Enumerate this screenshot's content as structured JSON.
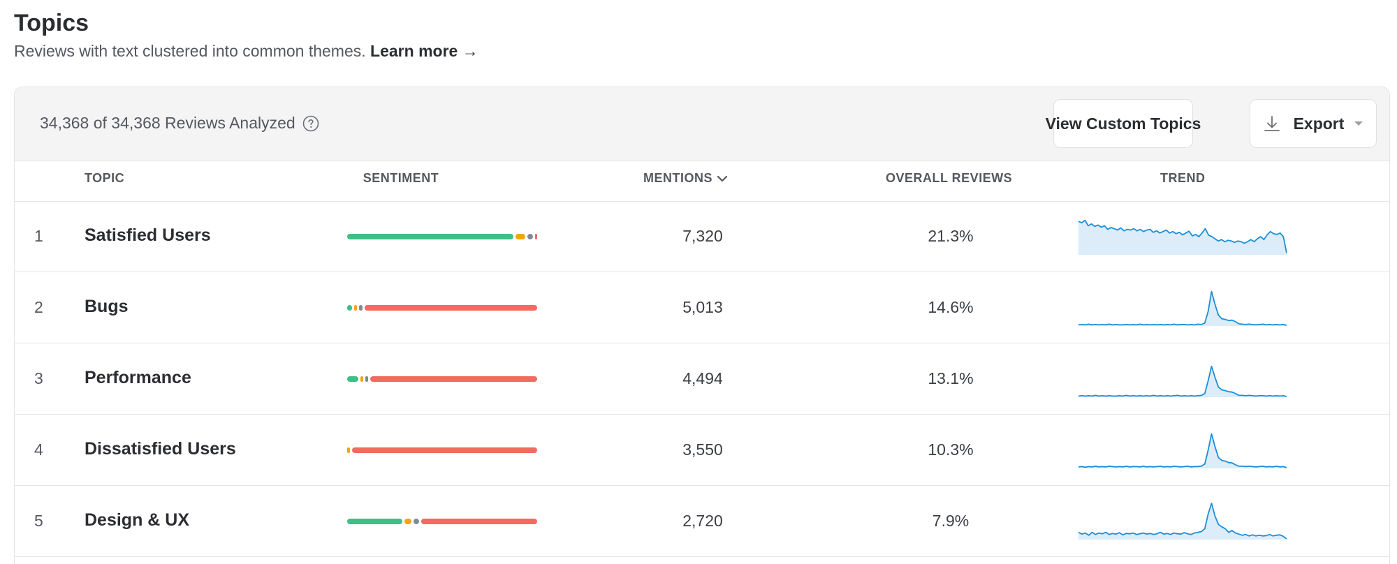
{
  "header": {
    "title": "Topics",
    "subtitle": "Reviews with text clustered into common themes.",
    "learn_more": "Learn more →"
  },
  "toolbar": {
    "analyzed": "34,368 of 34,368 Reviews Analyzed",
    "custom_topics_label": "View Custom Topics",
    "export_label": "Export"
  },
  "colors": {
    "positive": "#3dbf87",
    "mixed": "#f6a313",
    "neutral": "#7f8a96",
    "negative": "#f26a61",
    "trend_line": "#1a8fd8",
    "trend_fill": "#dcecf8"
  },
  "table": {
    "columns": {
      "topic": "TOPIC",
      "sentiment": "SENTIMENT",
      "mentions": "MENTIONS",
      "overall": "OVERALL REVIEWS",
      "trend": "TREND"
    },
    "rows": [
      {
        "rank": "1",
        "topic": "Satisfied Users",
        "mentions": "7,320",
        "overall": "21.3%",
        "sentiment": {
          "positive": 0.885,
          "mixed": 0.065,
          "neutral": 0.04,
          "negative": 0.01
        },
        "trend": [
          0.92,
          0.88,
          0.95,
          0.8,
          0.85,
          0.78,
          0.82,
          0.76,
          0.8,
          0.7,
          0.75,
          0.72,
          0.68,
          0.74,
          0.66,
          0.7,
          0.68,
          0.72,
          0.66,
          0.7,
          0.64,
          0.68,
          0.7,
          0.62,
          0.66,
          0.6,
          0.64,
          0.68,
          0.6,
          0.64,
          0.58,
          0.62,
          0.55,
          0.6,
          0.65,
          0.52,
          0.56,
          0.5,
          0.6,
          0.72,
          0.54,
          0.5,
          0.44,
          0.38,
          0.42,
          0.36,
          0.4,
          0.38,
          0.34,
          0.38,
          0.36,
          0.32,
          0.36,
          0.42,
          0.36,
          0.44,
          0.5,
          0.42,
          0.55,
          0.64,
          0.58,
          0.56,
          0.6,
          0.5,
          0.05
        ]
      },
      {
        "rank": "2",
        "topic": "Bugs",
        "mentions": "5,013",
        "overall": "14.6%",
        "sentiment": {
          "positive": 0.035,
          "mixed": 0.025,
          "neutral": 0.03,
          "negative": 0.91
        },
        "trend": [
          0.03,
          0.04,
          0.03,
          0.05,
          0.03,
          0.04,
          0.03,
          0.04,
          0.03,
          0.05,
          0.03,
          0.04,
          0.03,
          0.03,
          0.04,
          0.03,
          0.04,
          0.03,
          0.05,
          0.03,
          0.04,
          0.03,
          0.04,
          0.03,
          0.04,
          0.03,
          0.04,
          0.03,
          0.05,
          0.03,
          0.04,
          0.04,
          0.03,
          0.04,
          0.03,
          0.05,
          0.04,
          0.08,
          0.4,
          0.95,
          0.6,
          0.3,
          0.2,
          0.18,
          0.15,
          0.16,
          0.12,
          0.06,
          0.05,
          0.04,
          0.05,
          0.04,
          0.03,
          0.04,
          0.05,
          0.03,
          0.04,
          0.03,
          0.04,
          0.03,
          0.04,
          0.02
        ]
      },
      {
        "rank": "3",
        "topic": "Performance",
        "mentions": "4,494",
        "overall": "13.1%",
        "sentiment": {
          "positive": 0.07,
          "mixed": 0.02,
          "neutral": 0.02,
          "negative": 0.89
        },
        "trend": [
          0.03,
          0.04,
          0.03,
          0.04,
          0.03,
          0.05,
          0.03,
          0.04,
          0.03,
          0.04,
          0.03,
          0.03,
          0.04,
          0.03,
          0.05,
          0.03,
          0.04,
          0.03,
          0.04,
          0.03,
          0.04,
          0.03,
          0.05,
          0.03,
          0.04,
          0.03,
          0.04,
          0.03,
          0.04,
          0.05,
          0.03,
          0.04,
          0.03,
          0.04,
          0.03,
          0.04,
          0.05,
          0.1,
          0.45,
          0.85,
          0.55,
          0.28,
          0.2,
          0.18,
          0.15,
          0.14,
          0.1,
          0.05,
          0.05,
          0.04,
          0.05,
          0.04,
          0.03,
          0.04,
          0.04,
          0.03,
          0.04,
          0.03,
          0.04,
          0.03,
          0.04,
          0.02
        ]
      },
      {
        "rank": "4",
        "topic": "Dissatisfied Users",
        "mentions": "3,550",
        "overall": "10.3%",
        "sentiment": {
          "positive": 0.0,
          "mixed": 0.02,
          "neutral": 0.0,
          "negative": 0.98
        },
        "trend": [
          0.04,
          0.05,
          0.03,
          0.05,
          0.04,
          0.06,
          0.04,
          0.05,
          0.04,
          0.06,
          0.05,
          0.04,
          0.05,
          0.04,
          0.06,
          0.04,
          0.05,
          0.05,
          0.04,
          0.06,
          0.04,
          0.05,
          0.04,
          0.05,
          0.06,
          0.04,
          0.05,
          0.04,
          0.06,
          0.05,
          0.04,
          0.05,
          0.06,
          0.04,
          0.05,
          0.05,
          0.06,
          0.12,
          0.5,
          0.95,
          0.6,
          0.3,
          0.22,
          0.2,
          0.16,
          0.15,
          0.1,
          0.06,
          0.06,
          0.05,
          0.06,
          0.05,
          0.04,
          0.05,
          0.06,
          0.04,
          0.05,
          0.04,
          0.06,
          0.04,
          0.05,
          0.02
        ]
      },
      {
        "rank": "5",
        "topic": "Design & UX",
        "mentions": "2,720",
        "overall": "7.9%",
        "sentiment": {
          "positive": 0.3,
          "mixed": 0.05,
          "neutral": 0.04,
          "negative": 0.61
        },
        "trend": [
          0.2,
          0.15,
          0.18,
          0.12,
          0.2,
          0.14,
          0.18,
          0.16,
          0.2,
          0.14,
          0.17,
          0.15,
          0.19,
          0.13,
          0.17,
          0.16,
          0.18,
          0.14,
          0.16,
          0.18,
          0.15,
          0.17,
          0.14,
          0.16,
          0.2,
          0.15,
          0.17,
          0.14,
          0.18,
          0.16,
          0.15,
          0.19,
          0.16,
          0.14,
          0.18,
          0.2,
          0.22,
          0.3,
          0.7,
          1.0,
          0.65,
          0.42,
          0.35,
          0.3,
          0.2,
          0.25,
          0.18,
          0.15,
          0.12,
          0.14,
          0.1,
          0.13,
          0.1,
          0.12,
          0.1,
          0.11,
          0.14,
          0.1,
          0.12,
          0.13,
          0.09,
          0.02
        ]
      }
    ]
  }
}
